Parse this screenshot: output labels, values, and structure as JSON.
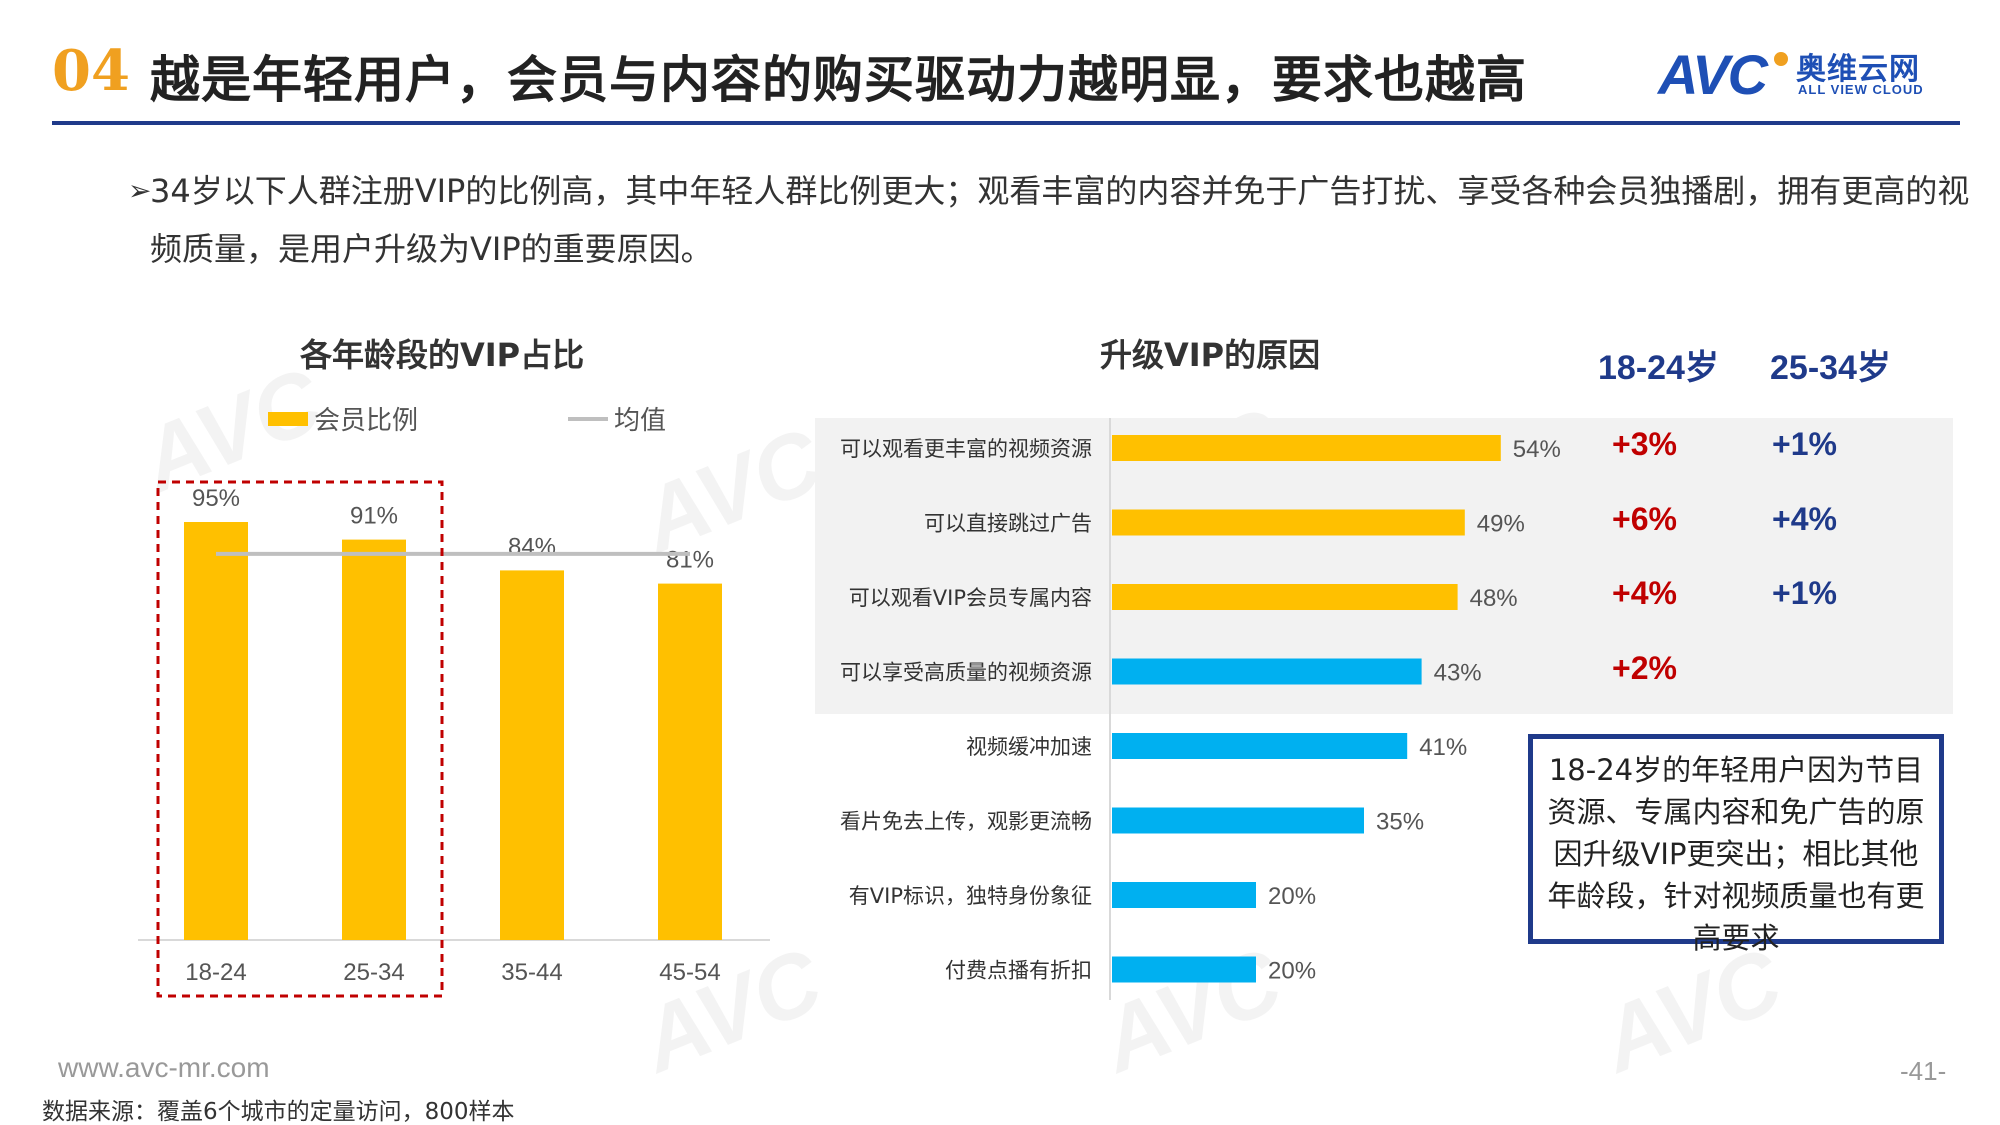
{
  "header": {
    "section_number": "04",
    "title": "越是年轻用户，会员与内容的购买驱动力越明显，要求也越高"
  },
  "logo": {
    "brand": "AVC",
    "cn": "奥维云网",
    "en": "ALL VIEW CLOUD"
  },
  "description": "34岁以下人群注册VIP的比例高，其中年轻人群比例更大；观看丰富的内容并免于广告打扰、享受各种会员独播剧，拥有更高的视频质量，是用户升级为VIP的重要原因。",
  "colors": {
    "accent_orange": "#F0A020",
    "bar_yellow": "#FFC000",
    "bar_blue": "#00B0F0",
    "avg_gray": "#BFBFBF",
    "navy": "#1F3A8A",
    "diff_red": "#C00000",
    "highlight_red": "#C00000"
  },
  "chart_data": [
    {
      "type": "bar",
      "title": "各年龄段的VIP占比",
      "categories": [
        "18-24",
        "25-34",
        "35-44",
        "45-54"
      ],
      "series": [
        {
          "name": "会员比例",
          "values": [
            95,
            91,
            84,
            81
          ],
          "labels": [
            "95%",
            "91%",
            "84%",
            "81%"
          ]
        },
        {
          "name": "均值",
          "type": "line",
          "value": 87.75
        }
      ],
      "ylim": [
        0,
        100
      ],
      "highlight_categories": [
        "18-24",
        "25-34"
      ],
      "legend": "top"
    },
    {
      "type": "bar",
      "orientation": "horizontal",
      "title": "升级VIP的原因",
      "categories": [
        "可以观看更丰富的视频资源",
        "可以直接跳过广告",
        "可以观看VIP会员专属内容",
        "可以享受高质量的视频资源",
        "视频缓冲加速",
        "看片免去上传，观影更流畅",
        "有VIP标识，独特身份象征",
        "付费点播有折扣"
      ],
      "values": [
        54,
        49,
        48,
        43,
        41,
        35,
        20,
        20
      ],
      "labels": [
        "54%",
        "49%",
        "48%",
        "43%",
        "41%",
        "35%",
        "20%",
        "20%"
      ],
      "bar_colors": [
        "#FFC000",
        "#FFC000",
        "#FFC000",
        "#00B0F0",
        "#00B0F0",
        "#00B0F0",
        "#00B0F0",
        "#00B0F0"
      ],
      "xlim": [
        0,
        60
      ],
      "comparison": {
        "headers": [
          "18-24岁",
          "25-34岁"
        ],
        "rows": [
          [
            "+3%",
            "+1%"
          ],
          [
            "+6%",
            "+4%"
          ],
          [
            "+4%",
            "+1%"
          ],
          [
            "+2%",
            ""
          ]
        ]
      }
    }
  ],
  "callout": "18-24岁的年轻用户因为节目资源、专属内容和免广告的原因升级VIP更突出；相比其他年龄段，针对视频质量也有更高要求",
  "footer": {
    "url": "www.avc-mr.com",
    "source": "数据来源：覆盖6个城市的定量访问，800样本",
    "page": "-41-"
  }
}
